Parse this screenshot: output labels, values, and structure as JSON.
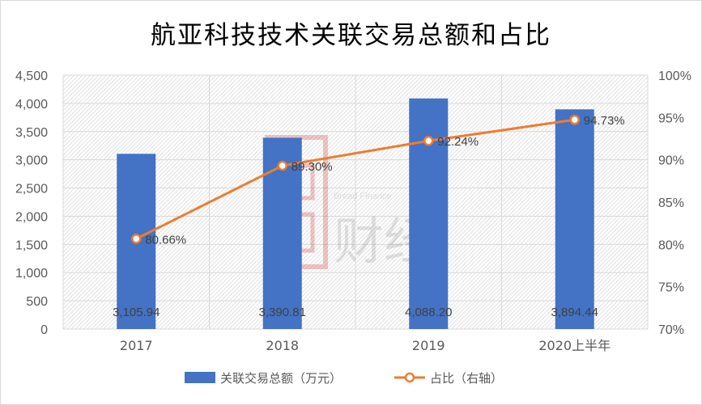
{
  "chart_data": {
    "type": "bar",
    "title": "航亚科技技术关联交易总额和占比",
    "categories": [
      "2017",
      "2018",
      "2019",
      "2020上半年"
    ],
    "series": [
      {
        "name": "关联交易总额（万元）",
        "type": "bar",
        "axis": "left",
        "values": [
          3105.94,
          3390.81,
          4088.2,
          3894.44
        ],
        "labels": [
          "3,105.94",
          "3,390.81",
          "4,088.20",
          "3,894.44"
        ],
        "color": "#4472c4"
      },
      {
        "name": "占比（右轴）",
        "type": "line",
        "axis": "right",
        "values": [
          80.66,
          89.3,
          92.24,
          94.73
        ],
        "labels": [
          "80.66%",
          "89.30%",
          "92.24%",
          "94.73%"
        ],
        "color": "#ed7d31"
      }
    ],
    "y_left": {
      "range": [
        0,
        4500
      ],
      "ticks": [
        0,
        500,
        1000,
        1500,
        2000,
        2500,
        3000,
        3500,
        4000,
        4500
      ],
      "tick_labels": [
        "0",
        "500",
        "1,000",
        "1,500",
        "2,000",
        "2,500",
        "3,000",
        "3,500",
        "4,000",
        "4,500"
      ]
    },
    "y_right": {
      "range": [
        70,
        100
      ],
      "ticks": [
        70,
        75,
        80,
        85,
        90,
        95,
        100
      ],
      "tick_labels": [
        "70%",
        "75%",
        "80%",
        "85%",
        "90%",
        "95%",
        "100%"
      ]
    },
    "grid": true,
    "legend_position": "bottom",
    "watermark": {
      "text": "Bread Finance 面包财经"
    }
  }
}
